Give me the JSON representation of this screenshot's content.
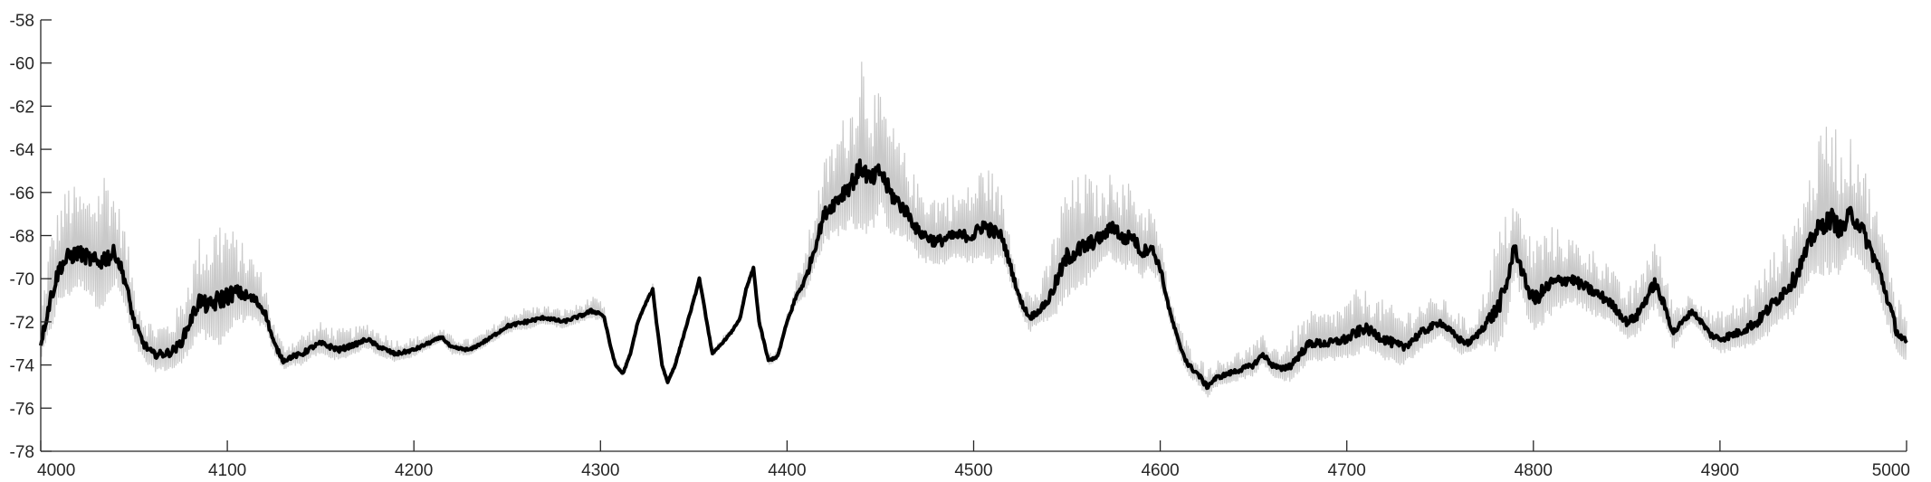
{
  "chart_data": {
    "type": "line",
    "title": "",
    "xlabel": "",
    "ylabel": "",
    "xlim": [
      4000,
      5000
    ],
    "ylim": [
      -78,
      -58
    ],
    "grid": false,
    "legend": "none",
    "x_ticks": [
      "4000",
      "4100",
      "4200",
      "4300",
      "4400",
      "4500",
      "4600",
      "4700",
      "4800",
      "4900",
      "5000"
    ],
    "y_ticks": [
      "-58",
      "-60",
      "-62",
      "-64",
      "-66",
      "-68",
      "-70",
      "-72",
      "-74",
      "-76",
      "-78"
    ],
    "colors": {
      "mean": "#000000",
      "band": "#c9c9c9",
      "axis": "#262626"
    },
    "series": [
      {
        "style": "thick black line",
        "x": [
          4000,
          4005,
          4010,
          4015,
          4020,
          4025,
          4030,
          4035,
          4040,
          4045,
          4050,
          4055,
          4060,
          4065,
          4070,
          4075,
          4080,
          4085,
          4090,
          4095,
          4100,
          4105,
          4110,
          4115,
          4120,
          4125,
          4130,
          4135,
          4140,
          4145,
          4150,
          4160,
          4170,
          4175,
          4180,
          4190,
          4200,
          4210,
          4215,
          4220,
          4230,
          4240,
          4250,
          4260,
          4270,
          4280,
          4290,
          4295,
          4300,
          4302,
          4305,
          4308,
          4312,
          4316,
          4320,
          4325,
          4328,
          4330,
          4333,
          4336,
          4340,
          4345,
          4350,
          4353,
          4356,
          4360,
          4365,
          4370,
          4375,
          4378,
          4382,
          4385,
          4390,
          4395,
          4400,
          4405,
          4410,
          4420,
          4430,
          4435,
          4440,
          4445,
          4450,
          4455,
          4460,
          4465,
          4470,
          4480,
          4490,
          4500,
          4505,
          4510,
          4515,
          4520,
          4525,
          4530,
          4535,
          4540,
          4545,
          4550,
          4560,
          4570,
          4575,
          4580,
          4585,
          4590,
          4595,
          4600,
          4605,
          4610,
          4615,
          4620,
          4625,
          4630,
          4640,
          4650,
          4655,
          4660,
          4665,
          4670,
          4675,
          4680,
          4690,
          4700,
          4705,
          4710,
          4720,
          4730,
          4740,
          4750,
          4760,
          4765,
          4770,
          4775,
          4780,
          4785,
          4790,
          4795,
          4800,
          4810,
          4820,
          4830,
          4840,
          4845,
          4850,
          4855,
          4860,
          4865,
          4870,
          4875,
          4880,
          4885,
          4890,
          4895,
          4900,
          4910,
          4920,
          4930,
          4940,
          4945,
          4950,
          4955,
          4960,
          4965,
          4970,
          4975,
          4980,
          4985,
          4990,
          4995,
          5000
        ],
        "y": [
          -73.0,
          -71.0,
          -69.5,
          -69.0,
          -68.8,
          -69.0,
          -69.3,
          -69.0,
          -68.8,
          -70.0,
          -72.0,
          -73.0,
          -73.5,
          -73.5,
          -73.4,
          -73.0,
          -72.0,
          -71.0,
          -71.3,
          -71.0,
          -70.8,
          -70.6,
          -70.8,
          -71.0,
          -71.5,
          -73.0,
          -73.8,
          -73.6,
          -73.5,
          -73.2,
          -73.0,
          -73.3,
          -73.0,
          -72.8,
          -73.1,
          -73.5,
          -73.3,
          -72.9,
          -72.7,
          -73.2,
          -73.3,
          -72.8,
          -72.2,
          -72.0,
          -71.8,
          -72.0,
          -71.7,
          -71.5,
          -71.6,
          -71.8,
          -73.0,
          -74.0,
          -74.4,
          -73.5,
          -72.0,
          -71.0,
          -70.5,
          -72.0,
          -74.0,
          -74.8,
          -74.0,
          -72.5,
          -71.0,
          -70.0,
          -71.5,
          -73.5,
          -73.0,
          -72.5,
          -71.8,
          -70.5,
          -69.5,
          -72.0,
          -73.8,
          -73.6,
          -72.0,
          -70.8,
          -70.0,
          -67.0,
          -66.0,
          -65.5,
          -64.8,
          -65.5,
          -65.0,
          -66.0,
          -66.5,
          -67.0,
          -67.8,
          -68.3,
          -68.0,
          -68.0,
          -67.5,
          -67.8,
          -68.0,
          -69.5,
          -71.0,
          -71.8,
          -71.5,
          -71.0,
          -70.0,
          -69.0,
          -68.5,
          -68.0,
          -67.5,
          -68.2,
          -68.0,
          -68.8,
          -68.5,
          -69.5,
          -71.5,
          -73.0,
          -74.0,
          -74.4,
          -75.0,
          -74.6,
          -74.3,
          -74.0,
          -73.5,
          -74.0,
          -74.2,
          -74.0,
          -73.5,
          -73.0,
          -73.0,
          -72.8,
          -72.5,
          -72.3,
          -72.8,
          -73.2,
          -72.5,
          -72.0,
          -72.8,
          -73.0,
          -72.6,
          -72.0,
          -71.5,
          -70.5,
          -68.5,
          -70.0,
          -71.0,
          -70.2,
          -70.0,
          -70.5,
          -71.0,
          -71.5,
          -72.0,
          -71.8,
          -71.0,
          -70.2,
          -71.2,
          -72.5,
          -72.0,
          -71.5,
          -72.0,
          -72.6,
          -72.8,
          -72.5,
          -72.0,
          -71.0,
          -70.0,
          -69.0,
          -68.0,
          -67.5,
          -67.2,
          -67.8,
          -67.0,
          -67.5,
          -68.5,
          -69.5,
          -71.0,
          -72.5,
          -73.0
        ]
      },
      {
        "style": "light gray band (fluctuations)",
        "x": [
          4000,
          4005,
          4010,
          4015,
          4020,
          4025,
          4030,
          4035,
          4040,
          4045,
          4050,
          4055,
          4060,
          4065,
          4070,
          4075,
          4080,
          4085,
          4090,
          4095,
          4100,
          4105,
          4110,
          4115,
          4120,
          4125,
          4130,
          4135,
          4140,
          4145,
          4150,
          4160,
          4170,
          4175,
          4180,
          4190,
          4200,
          4210,
          4215,
          4220,
          4230,
          4240,
          4250,
          4260,
          4270,
          4280,
          4290,
          4295,
          4300,
          4302,
          4305,
          4308,
          4312,
          4316,
          4320,
          4325,
          4328,
          4330,
          4333,
          4336,
          4340,
          4345,
          4350,
          4353,
          4356,
          4360,
          4365,
          4370,
          4375,
          4378,
          4382,
          4385,
          4390,
          4395,
          4400,
          4405,
          4410,
          4420,
          4430,
          4435,
          4440,
          4445,
          4450,
          4455,
          4460,
          4465,
          4470,
          4480,
          4490,
          4500,
          4505,
          4510,
          4515,
          4520,
          4525,
          4530,
          4535,
          4540,
          4545,
          4550,
          4560,
          4570,
          4575,
          4580,
          4585,
          4590,
          4595,
          4600,
          4605,
          4610,
          4615,
          4620,
          4625,
          4630,
          4640,
          4650,
          4655,
          4660,
          4665,
          4670,
          4675,
          4680,
          4690,
          4700,
          4705,
          4710,
          4720,
          4730,
          4740,
          4750,
          4760,
          4765,
          4770,
          4775,
          4780,
          4785,
          4790,
          4795,
          4800,
          4810,
          4820,
          4830,
          4840,
          4845,
          4850,
          4855,
          4860,
          4865,
          4870,
          4875,
          4880,
          4885,
          4890,
          4895,
          4900,
          4910,
          4920,
          4930,
          4940,
          4945,
          4950,
          4955,
          4960,
          4965,
          4970,
          4975,
          4980,
          4985,
          4990,
          4995,
          5000
        ],
        "upper": [
          -71.5,
          -68.0,
          -66.5,
          -65.5,
          -65.8,
          -66.0,
          -65.5,
          -64.6,
          -66.0,
          -67.5,
          -70.0,
          -71.5,
          -72.0,
          -72.0,
          -71.8,
          -71.0,
          -69.5,
          -68.0,
          -68.0,
          -67.0,
          -67.2,
          -68.0,
          -68.5,
          -69.0,
          -70.0,
          -72.0,
          -73.0,
          -72.8,
          -72.5,
          -72.3,
          -72.0,
          -72.3,
          -72.2,
          -72.0,
          -72.3,
          -72.8,
          -72.7,
          -72.4,
          -72.3,
          -72.6,
          -72.8,
          -72.3,
          -71.6,
          -71.3,
          -71.2,
          -71.4,
          -71.1,
          -70.8,
          -71.0,
          -71.3,
          -72.7,
          -73.8,
          -74.1,
          -73.2,
          -71.7,
          -70.7,
          -70.2,
          -71.7,
          -73.7,
          -74.5,
          -73.7,
          -72.2,
          -70.7,
          -69.7,
          -71.2,
          -73.2,
          -72.7,
          -72.2,
          -71.5,
          -70.2,
          -69.2,
          -71.6,
          -73.4,
          -73.2,
          -71.6,
          -70.0,
          -68.5,
          -64.5,
          -62.5,
          -61.5,
          -59.0,
          -61.0,
          -61.5,
          -62.5,
          -63.5,
          -64.5,
          -65.5,
          -66.0,
          -66.0,
          -65.5,
          -64.5,
          -65.0,
          -66.0,
          -68.0,
          -70.0,
          -70.5,
          -70.5,
          -69.0,
          -67.0,
          -65.5,
          -65.0,
          -66.0,
          -64.5,
          -65.5,
          -65.5,
          -66.5,
          -66.5,
          -68.0,
          -70.5,
          -72.0,
          -73.0,
          -73.5,
          -74.0,
          -73.8,
          -73.4,
          -73.0,
          -72.6,
          -73.0,
          -73.2,
          -72.5,
          -72.0,
          -71.5,
          -71.5,
          -71.0,
          -70.5,
          -70.5,
          -71.0,
          -71.5,
          -71.0,
          -70.8,
          -71.5,
          -72.0,
          -71.5,
          -70.0,
          -68.0,
          -67.0,
          -66.0,
          -67.5,
          -68.0,
          -67.5,
          -68.0,
          -68.5,
          -69.0,
          -70.0,
          -70.5,
          -70.0,
          -69.0,
          -68.0,
          -69.5,
          -71.0,
          -71.0,
          -70.5,
          -71.0,
          -71.5,
          -71.5,
          -71.0,
          -70.0,
          -68.5,
          -67.0,
          -66.0,
          -64.5,
          -63.0,
          -62.0,
          -64.0,
          -63.5,
          -64.0,
          -65.5,
          -67.0,
          -68.5,
          -70.5,
          -71.5
        ]
      }
    ]
  }
}
